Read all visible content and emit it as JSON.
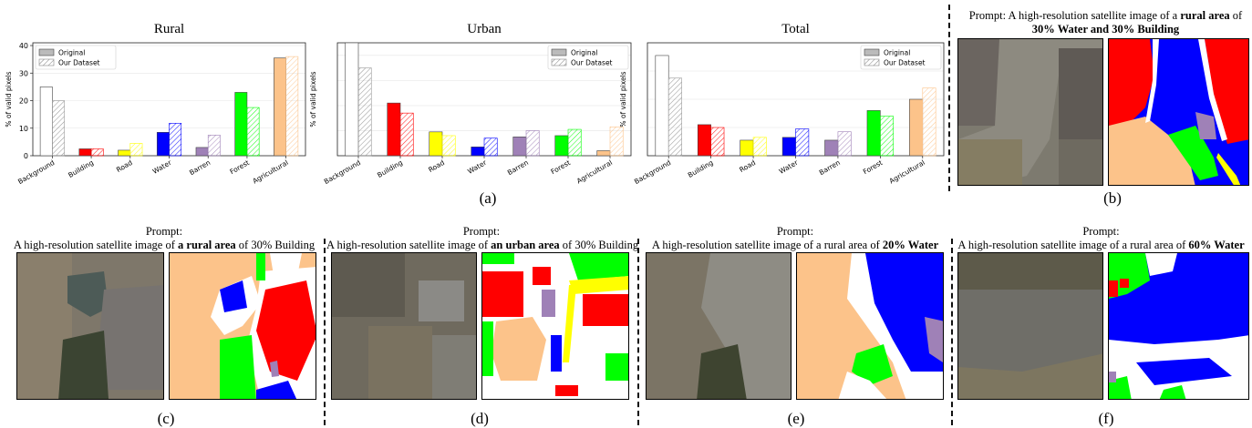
{
  "chart_data": [
    {
      "type": "bar",
      "title": "Rural",
      "ylabel": "% of valid pixels",
      "ylim": [
        0,
        41
      ],
      "yticks": [
        0,
        10,
        20,
        30,
        40
      ],
      "categories": [
        "Background",
        "Building",
        "Road",
        "Water",
        "Barren",
        "Forest",
        "Agricultural"
      ],
      "series": [
        {
          "name": "Original",
          "values": [
            25,
            2.5,
            2,
            8.5,
            3,
            23,
            35.5
          ]
        },
        {
          "name": "Our Dataset",
          "values": [
            20,
            2.5,
            4.5,
            11.8,
            7.5,
            17.5,
            36
          ]
        }
      ],
      "legend_position": "top-left"
    },
    {
      "type": "bar",
      "title": "Urban",
      "ylabel": "% of valid pixels",
      "ylim": [
        0,
        45
      ],
      "yticks": [],
      "categories": [
        "Background",
        "Building",
        "Road",
        "Water",
        "Barren",
        "Forest",
        "Agricultural"
      ],
      "series": [
        {
          "name": "Original",
          "values": [
            45,
            21,
            9.5,
            3.5,
            7.5,
            8,
            2
          ]
        },
        {
          "name": "Our Dataset",
          "values": [
            35,
            17,
            8,
            7,
            10,
            10.5,
            11.5
          ]
        }
      ],
      "legend_position": "top-right"
    },
    {
      "type": "bar",
      "title": "Total",
      "ylabel": "% of valid pixels",
      "ylim": [
        0,
        40
      ],
      "yticks": [],
      "categories": [
        "Background",
        "Building",
        "Road",
        "Water",
        "Barren",
        "Forest",
        "Agricultural"
      ],
      "series": [
        {
          "name": "Original",
          "values": [
            35.5,
            11,
            5.5,
            6.5,
            5.5,
            16,
            20
          ]
        },
        {
          "name": "Our Dataset",
          "values": [
            27.5,
            10,
            6.5,
            9.5,
            8.5,
            14,
            24
          ]
        }
      ],
      "legend_position": "top-right"
    }
  ],
  "colors": {
    "Background": "#ffffff",
    "Building": "#ff0000",
    "Road": "#ffff00",
    "Water": "#0000ff",
    "Barren": "#9f81b7",
    "Forest": "#00ff00",
    "Agricultural": "#fcc38a"
  },
  "captions": {
    "a": "(a)",
    "b": "(b)",
    "c": "(c)",
    "d": "(d)",
    "e": "(e)",
    "f": "(f)"
  },
  "prompts": {
    "b": {
      "line1": "Prompt: A high-resolution satellite image of a ",
      "bold1": "rural area",
      "line1_end": " of",
      "bold2": "30% Water and 30% Building"
    },
    "c": {
      "head": "Prompt:",
      "pre": "A high-resolution satellite image of ",
      "bold": "a rural area",
      "post": " of 30% Building"
    },
    "d": {
      "head": "Prompt:",
      "pre": "A high-resolution satellite image of ",
      "bold": "an urban area",
      "post": " of 30% Building"
    },
    "e": {
      "head": "Prompt:",
      "pre": "A high-resolution satellite image of a rural area of ",
      "bold": "20% Water",
      "post": ""
    },
    "f": {
      "head": "Prompt:",
      "pre": "A high-resolution satellite image of a rural area of ",
      "bold": "60% Water",
      "post": ""
    }
  }
}
